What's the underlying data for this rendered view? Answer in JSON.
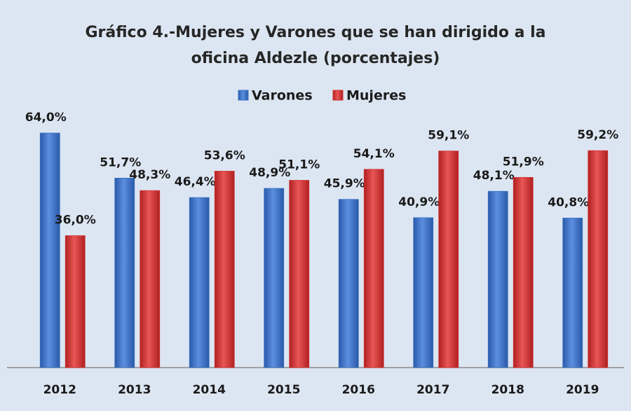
{
  "chart_data": {
    "type": "bar",
    "title": "Gráfico 4.-Mujeres y Varones que se han dirigido a la oficina Aldezle (porcentajes)",
    "categories": [
      "2012",
      "2013",
      "2014",
      "2015",
      "2016",
      "2017",
      "2018",
      "2019"
    ],
    "series": [
      {
        "name": "Varones",
        "color": "#3a70c4",
        "values": [
          64.0,
          51.7,
          46.4,
          48.9,
          45.9,
          40.9,
          48.1,
          40.8
        ],
        "value_labels": [
          "64,0%",
          "51,7%",
          "46,4%",
          "48,9%",
          "45,9%",
          "40,9%",
          "48,1%",
          "40,8%"
        ]
      },
      {
        "name": "Mujeres",
        "color": "#d03333",
        "values": [
          36.0,
          48.3,
          53.6,
          51.1,
          54.1,
          59.1,
          51.9,
          59.2
        ],
        "value_labels": [
          "36,0%",
          "48,3%",
          "53,6%",
          "51,1%",
          "54,1%",
          "59,1%",
          "51,9%",
          "59,2%"
        ]
      }
    ],
    "legend": "top"
  }
}
